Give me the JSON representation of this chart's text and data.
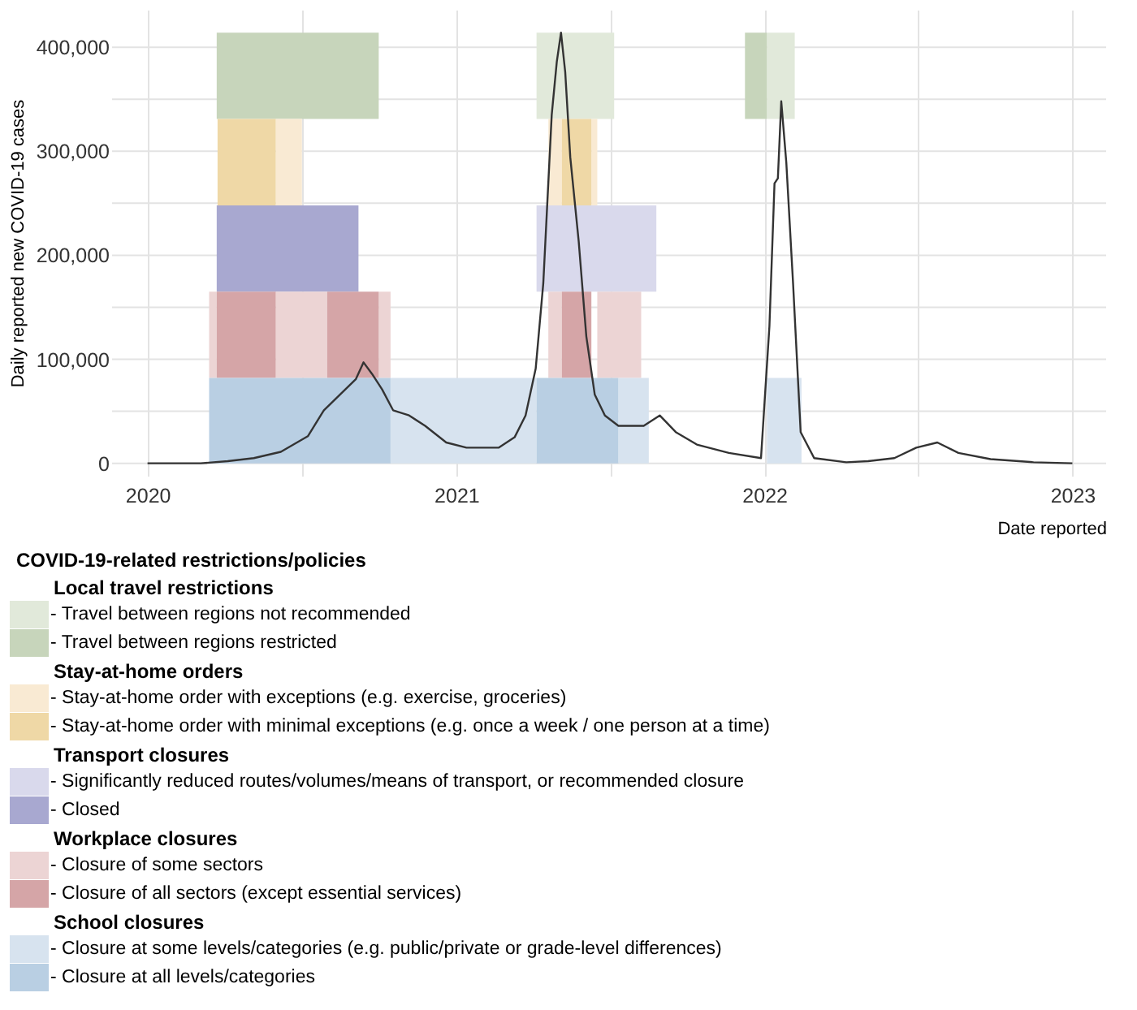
{
  "chart_data": {
    "type": "line",
    "xlabel": "Date reported",
    "ylabel": "Daily reported new COVID-19 cases",
    "legend_title": "COVID-19-related restrictions/policies",
    "annotations": [
      "Local travel restrictions",
      "Stay-at-home orders",
      "Transport closures",
      "Workplace closures",
      "School closures"
    ],
    "xlim": [
      "2019-11-20",
      "2023-02-10"
    ],
    "xticks": [
      "2020",
      {
        "value": "2020-07-02",
        "label": null
      },
      "2021",
      {
        "value": "2021-07-02",
        "label": null
      },
      "2022",
      {
        "value": "2022-07-02",
        "label": null
      },
      "2023"
    ],
    "ylim": [
      -12000,
      436000
    ],
    "yticks": [
      {
        "value": 0,
        "label": "0"
      },
      {
        "value": 50000,
        "label": null
      },
      {
        "value": 100000,
        "label": "100,000"
      },
      {
        "value": 150000,
        "label": null
      },
      {
        "value": 200000,
        "label": "200,000"
      },
      {
        "value": 250000,
        "label": null
      },
      {
        "value": 300000,
        "label": "300,000"
      },
      {
        "value": 350000,
        "label": null
      },
      {
        "value": 400000,
        "label": "400,000"
      }
    ],
    "grid": true,
    "legend": "bottom",
    "series": [
      {
        "color": "#333333",
        "x": [
          "2020-01-01",
          "2020-03-04",
          "2020-04-05",
          "2020-05-06",
          "2020-06-07",
          "2020-07-09",
          "2020-07-28",
          "2020-08-16",
          "2020-09-04",
          "2020-09-13",
          "2020-09-23",
          "2020-10-05",
          "2020-10-18",
          "2020-11-06",
          "2020-11-25",
          "2020-12-20",
          "2021-01-13",
          "2021-02-20",
          "2021-03-11",
          "2021-03-24",
          "2021-04-05",
          "2021-04-14",
          "2021-04-24",
          "2021-04-30",
          "2021-05-05",
          "2021-05-10",
          "2021-05-16",
          "2021-05-26",
          "2021-06-04",
          "2021-06-14",
          "2021-06-26",
          "2021-07-12",
          "2021-07-17",
          "2021-08-11",
          "2021-08-30",
          "2021-09-18",
          "2021-10-13",
          "2021-11-20",
          "2021-12-28",
          "2022-01-07",
          "2022-01-13",
          "2022-01-17",
          "2022-01-21",
          "2022-01-27",
          "2022-02-04",
          "2022-02-13",
          "2022-03-01",
          "2022-04-08",
          "2022-05-04",
          "2022-06-04",
          "2022-06-30",
          "2022-07-25",
          "2022-08-19",
          "2022-09-26",
          "2022-11-16",
          "2023-01-01"
        ],
        "values": [
          0,
          0,
          2000,
          5000,
          11000,
          26000,
          51000,
          66000,
          81000,
          97000,
          86000,
          71000,
          51000,
          46000,
          36000,
          20000,
          15000,
          15000,
          25000,
          46000,
          91000,
          173000,
          335000,
          386000,
          414000,
          376000,
          294000,
          213000,
          122000,
          66000,
          46000,
          36000,
          36000,
          36000,
          46000,
          30000,
          18000,
          10000,
          5000,
          132000,
          269000,
          274000,
          348000,
          289000,
          173000,
          30000,
          5000,
          1000,
          2000,
          5000,
          15000,
          20000,
          10000,
          4000,
          1000,
          0
        ]
      }
    ],
    "bands": [
      {
        "axis": "x",
        "from": "2021-04-06",
        "to": "2021-07-07",
        "label": "- Travel between regions not recommended",
        "color": "#e1e9da"
      },
      {
        "axis": "x",
        "from": "2022-01-04",
        "to": "2022-02-06",
        "color": "#e1e9da"
      },
      {
        "axis": "x",
        "from": "2020-03-23",
        "to": "2020-10-01",
        "label": "- Travel between regions restricted",
        "color": "#c7d5bb"
      },
      {
        "axis": "x",
        "from": "2021-12-09",
        "to": "2022-01-04",
        "color": "#c7d5bb"
      },
      {
        "axis": "x",
        "from": "2020-06-01",
        "to": "2020-07-02",
        "label": "- Stay-at-home order with exceptions (e.g. exercise, groceries)",
        "color": "#f9ead3"
      },
      {
        "axis": "x",
        "from": "2021-04-20",
        "to": "2021-05-06",
        "color": "#f9ead3"
      },
      {
        "axis": "x",
        "from": "2021-06-10",
        "to": "2021-06-17",
        "color": "#f9ead3"
      },
      {
        "axis": "x",
        "from": "2020-03-24",
        "to": "2020-06-01",
        "label": "- Stay-at-home order with minimal exceptions (e.g. once a week / one person at a time)",
        "color": "#efd8a6"
      },
      {
        "axis": "x",
        "from": "2021-05-06",
        "to": "2021-06-10",
        "color": "#efd8a6"
      },
      {
        "axis": "x",
        "from": "2021-04-06",
        "to": "2021-08-26",
        "label": "- Significantly reduced routes/volumes/means of transport, or recommended closure",
        "color": "#d9d9ec"
      },
      {
        "axis": "x",
        "from": "2020-03-23",
        "to": "2020-09-07",
        "label": "- Closed",
        "color": "#a8a8d0"
      },
      {
        "axis": "x",
        "from": "2020-03-14",
        "to": "2020-03-23",
        "label": "- Closure of some sectors",
        "color": "#ecd4d4"
      },
      {
        "axis": "x",
        "from": "2020-06-01",
        "to": "2020-08-01",
        "color": "#ecd4d4"
      },
      {
        "axis": "x",
        "from": "2020-10-01",
        "to": "2020-10-15",
        "color": "#ecd4d4"
      },
      {
        "axis": "x",
        "from": "2021-04-20",
        "to": "2021-05-06",
        "color": "#ecd4d4"
      },
      {
        "axis": "x",
        "from": "2021-06-17",
        "to": "2021-08-08",
        "color": "#ecd4d4"
      },
      {
        "axis": "x",
        "from": "2020-03-23",
        "to": "2020-06-01",
        "label": "- Closure of all sectors (except essential services)",
        "color": "#d5a5a7"
      },
      {
        "axis": "x",
        "from": "2020-08-01",
        "to": "2020-10-01",
        "color": "#d5a5a7"
      },
      {
        "axis": "x",
        "from": "2021-05-06",
        "to": "2021-06-10",
        "color": "#d5a5a7"
      },
      {
        "axis": "x",
        "from": "2020-10-15",
        "to": "2021-04-06",
        "label": "- Closure at some levels/categories (e.g. public/private or grade-level differences)",
        "color": "#d7e3ef"
      },
      {
        "axis": "x",
        "from": "2021-07-12",
        "to": "2021-08-17",
        "color": "#d7e3ef"
      },
      {
        "axis": "x",
        "from": "2022-01-04",
        "to": "2022-02-14",
        "color": "#d7e3ef"
      },
      {
        "axis": "x",
        "from": "2020-03-14",
        "to": "2020-10-15",
        "label": "- Closure at all levels/categories",
        "color": "#b9cfe3"
      },
      {
        "axis": "x",
        "from": "2021-04-06",
        "to": "2021-07-12",
        "color": "#b9cfe3"
      }
    ]
  }
}
